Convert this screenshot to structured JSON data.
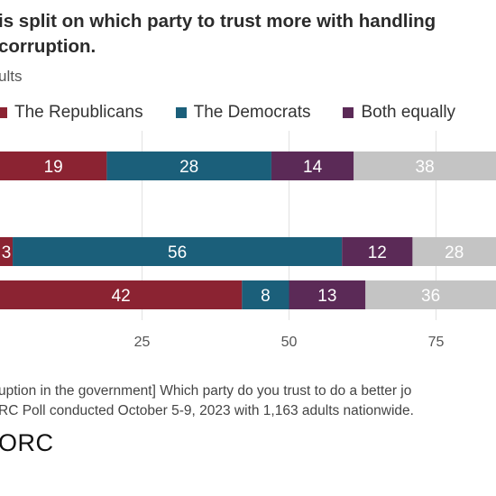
{
  "title": "is split on which party to trust more with handling\ncorruption.",
  "subtitle": "ults",
  "legend": [
    {
      "label": "The Republicans",
      "color": "#8b2332"
    },
    {
      "label": "The Democrats",
      "color": "#1b5f7a"
    },
    {
      "label": "Both equally",
      "color": "#5b2a57"
    }
  ],
  "note": "uption in the government] Which party do you trust to do a better jo\nRC Poll conducted October 5-9, 2023 with 1,163 adults nationwide.",
  "brand": "ORC",
  "chart_data": {
    "type": "bar",
    "orientation": "horizontal",
    "stacked": true,
    "xlim": [
      0,
      100
    ],
    "x_ticks": [
      25,
      50,
      75
    ],
    "grid": true,
    "rows": [
      {
        "values": [
          19,
          28,
          14,
          38
        ]
      },
      {
        "values": [
          3,
          56,
          12,
          28
        ]
      },
      {
        "values": [
          42,
          8,
          13,
          36
        ]
      }
    ],
    "segment_colors": [
      "#8b2332",
      "#1b5f7a",
      "#5b2a57",
      "#c4c4c4"
    ],
    "label_color": "#ffffff"
  }
}
